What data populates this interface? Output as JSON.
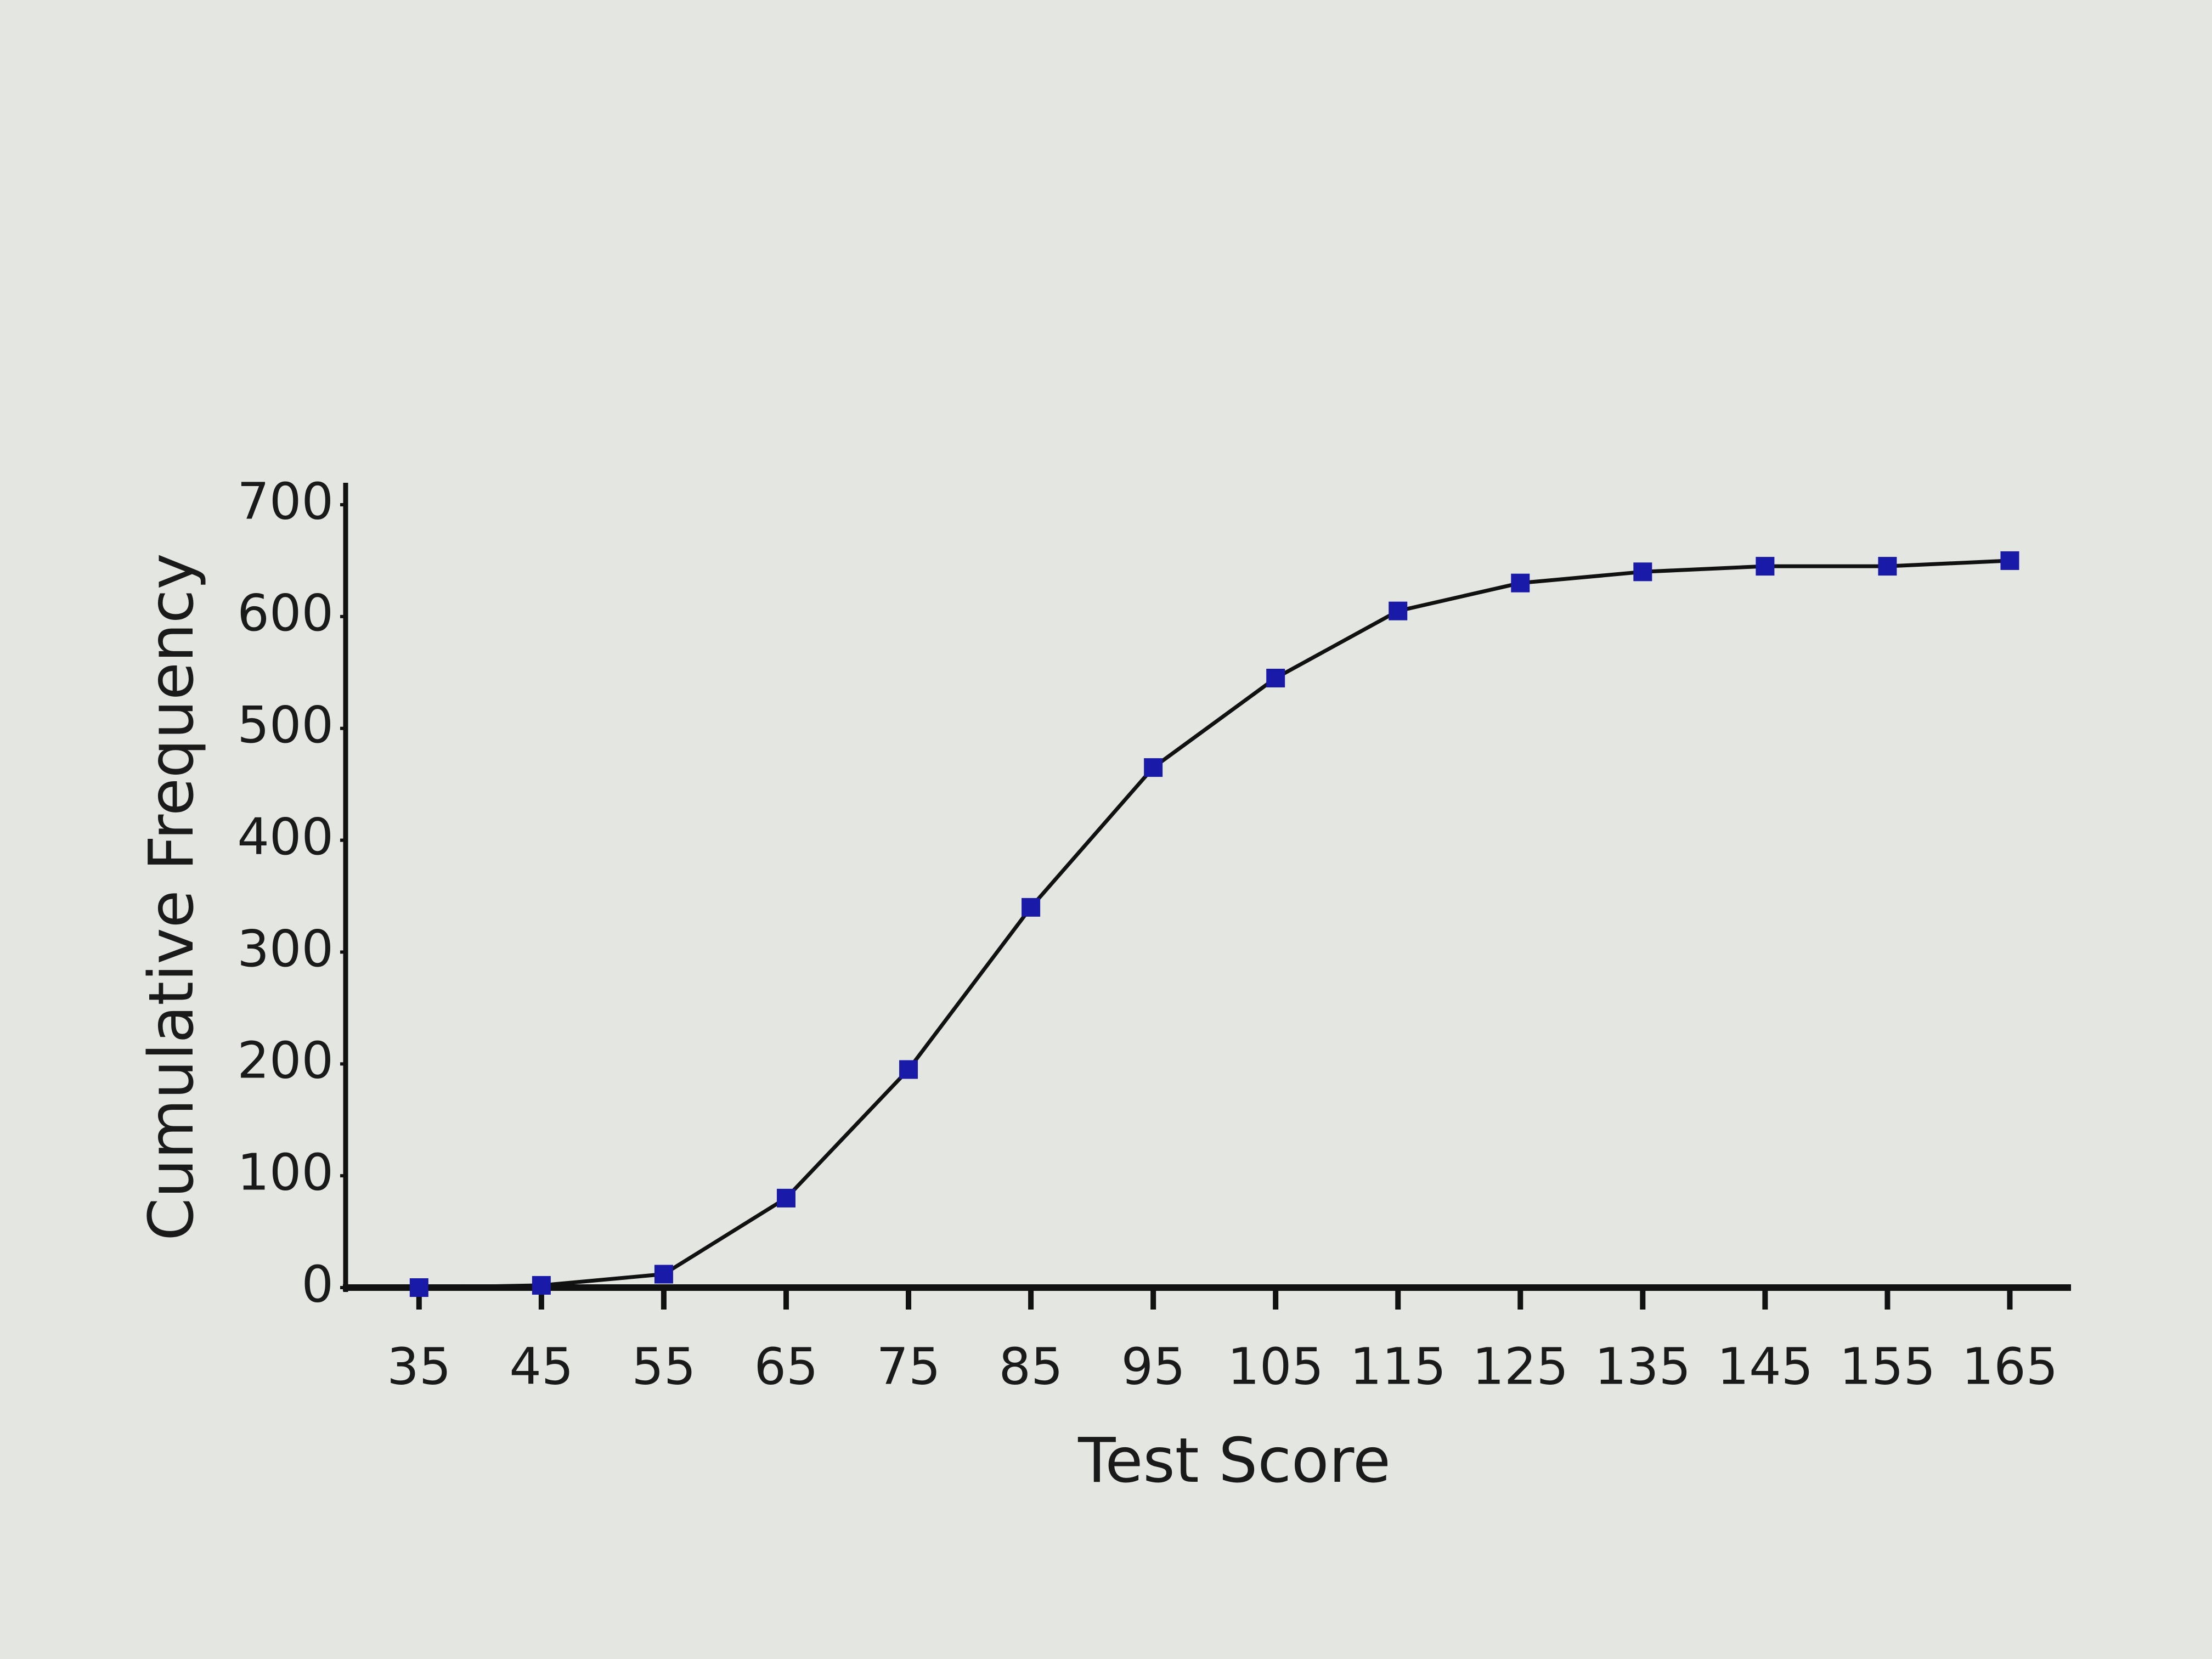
{
  "chart_data": {
    "type": "line",
    "x_label": "Test Score",
    "y_label": "Cumulative Frequency",
    "x": [
      35,
      45,
      55,
      65,
      75,
      85,
      95,
      105,
      115,
      125,
      135,
      145,
      155,
      165
    ],
    "series": [
      {
        "color": "#1a1aa8",
        "line_color": "#111111",
        "values": [
          0,
          2,
          12,
          80,
          195,
          340,
          465,
          545,
          605,
          630,
          640,
          645,
          645,
          650
        ]
      }
    ],
    "xlim": [
      29,
      170
    ],
    "xticks": [
      35,
      45,
      55,
      65,
      75,
      85,
      95,
      105,
      115,
      125,
      135,
      145,
      155,
      165
    ],
    "ylim": [
      0,
      700
    ],
    "yticks": [
      0,
      100,
      200,
      300,
      400,
      500,
      600,
      700
    ],
    "grid": false
  }
}
